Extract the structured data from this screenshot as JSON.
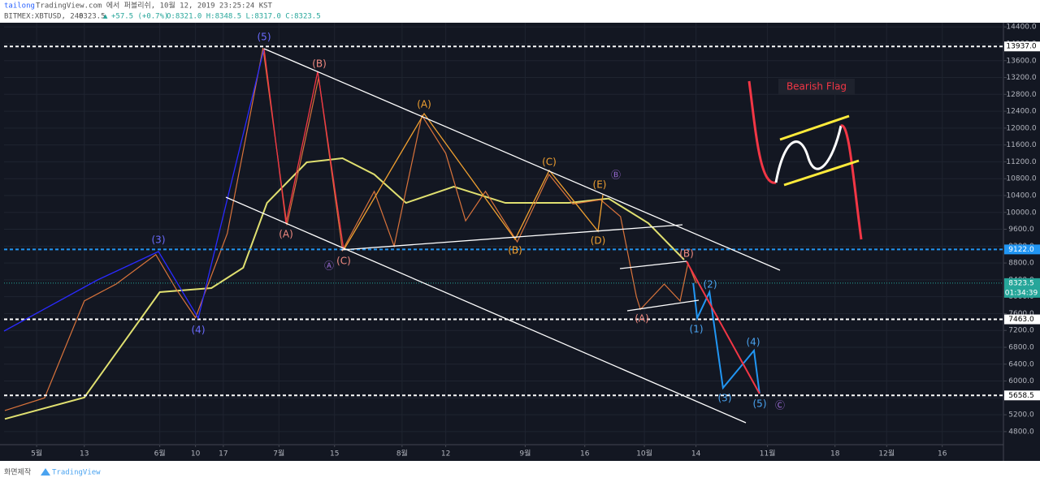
{
  "chart_data": {
    "type": "line",
    "author": "tailong",
    "title": "TradingView.com 에서 퍼블리쉬, 10월 12, 2019 23:25:24 KST",
    "symbol": "BITMEX:XBTUSD, 240",
    "last": 8323.5,
    "change": "+57.5 (+0.7%)",
    "ohlc": "O:8321.0 H:8348.5 L:8317.0 C:8323.5",
    "footer": "화면제작",
    "brand": "TradingView",
    "xlim": [
      -8.2,
      243.4
    ],
    "xticks": [
      {
        "value": 0,
        "label": "5월"
      },
      {
        "value": 12,
        "label": "13"
      },
      {
        "value": 31,
        "label": "6월"
      },
      {
        "value": 40,
        "label": "10"
      },
      {
        "value": 47,
        "label": "17"
      },
      {
        "value": 61,
        "label": "7월"
      },
      {
        "value": 75,
        "label": "15"
      },
      {
        "value": 92,
        "label": "8월"
      },
      {
        "value": 103,
        "label": "12"
      },
      {
        "value": 123,
        "label": "9월"
      },
      {
        "value": 138,
        "label": "16"
      },
      {
        "value": 153,
        "label": "10월"
      },
      {
        "value": 166,
        "label": "14"
      },
      {
        "value": 184,
        "label": "11월"
      },
      {
        "value": 201,
        "label": "18"
      },
      {
        "value": 214,
        "label": "12월"
      },
      {
        "value": 228,
        "label": "16"
      }
    ],
    "ylim": [
      4490,
      14500
    ],
    "yticks": [
      {
        "value": 4800,
        "label": "4800.0"
      },
      {
        "value": 5200,
        "label": "5200.0"
      },
      {
        "value": 5600,
        "label": "5600.0"
      },
      {
        "value": 6000,
        "label": "6000.0"
      },
      {
        "value": 6400,
        "label": "6400.0"
      },
      {
        "value": 6800,
        "label": "6800.0"
      },
      {
        "value": 7200,
        "label": "7200.0"
      },
      {
        "value": 7600,
        "label": "7600.0"
      },
      {
        "value": 8000,
        "label": "8000.0"
      },
      {
        "value": 8400,
        "label": "8400.0"
      },
      {
        "value": 8800,
        "label": "8800.0"
      },
      {
        "value": 9200,
        "label": "9200.0"
      },
      {
        "value": 9600,
        "label": "9600.0"
      },
      {
        "value": 10000,
        "label": "10000.0"
      },
      {
        "value": 10400,
        "label": "10400.0"
      },
      {
        "value": 10800,
        "label": "10800.0"
      },
      {
        "value": 11200,
        "label": "11200.0"
      },
      {
        "value": 11600,
        "label": "11600.0"
      },
      {
        "value": 12000,
        "label": "12000.0"
      },
      {
        "value": 12400,
        "label": "12400.0"
      },
      {
        "value": 12800,
        "label": "12800.0"
      },
      {
        "value": 13200,
        "label": "13200.0"
      },
      {
        "value": 13600,
        "label": "13600.0"
      },
      {
        "value": 14000,
        "label": "14000.0"
      },
      {
        "value": 14400,
        "label": "14400.0"
      }
    ],
    "grid": true,
    "series": [
      {
        "color": "#e0e070",
        "x": [
          -8,
          12,
          31,
          44,
          52,
          58,
          68,
          77,
          85,
          93,
          105,
          118,
          134,
          144,
          154,
          163
        ],
        "values": [
          5100,
          5610,
          8109,
          8205,
          8686,
          10226,
          11189,
          11285,
          10900,
          10226,
          10611,
          10226,
          10226,
          10330,
          9745,
          8879
        ]
      },
      {
        "color": "#d9733b",
        "x": [
          -8,
          2,
          12,
          20,
          30,
          35,
          40,
          48,
          57,
          63,
          71,
          77,
          85,
          90,
          97,
          103,
          108,
          113,
          121,
          129,
          135,
          142,
          147,
          151,
          152,
          158,
          162,
          164,
          166
        ],
        "values": [
          5300,
          5600,
          7900,
          8300,
          9000,
          8200,
          7500,
          9500,
          13900,
          9700,
          13200,
          9100,
          10500,
          9200,
          12300,
          11400,
          9800,
          10500,
          9300,
          10900,
          10200,
          10300,
          9900,
          8000,
          7700,
          8300,
          7900,
          8800,
          8323.5
        ]
      },
      {
        "color": "#2196f3",
        "x": [
          165.3,
          166.3,
          169.4,
          172.8,
          180.6,
          182
        ],
        "values": [
          8323.5,
          7493,
          8109,
          5838,
          6723,
          5703
        ]
      },
      {
        "color": "#f23645",
        "x": [
          163.6,
          182
        ],
        "values": [
          8840,
          5700
        ]
      }
    ],
    "levels": [
      {
        "value": 13937,
        "label": "13937.0",
        "color": "#ffffff"
      },
      {
        "value": 9122,
        "label": "9122.0",
        "color": "#2196f3"
      },
      {
        "value": 7463,
        "label": "7463.0",
        "color": "#ffffff"
      },
      {
        "value": 5658.5,
        "label": "5658.5",
        "color": "#ffffff"
      }
    ],
    "price_label": {
      "value": 8323.5,
      "label": "8323.5",
      "color": "#26a69a"
    },
    "countdown": "01:34:39",
    "annotations": [
      {
        "text": "(5)",
        "color": "#6b6bff"
      },
      {
        "text": "(B)",
        "color": "#f08a80"
      },
      {
        "text": "(A)",
        "color": "#f0a030"
      },
      {
        "text": "(C)",
        "color": "#f0a030"
      },
      {
        "text": "(E)",
        "color": "#f0a030"
      },
      {
        "text": "Ⓑ",
        "color": "#9b6bd6"
      },
      {
        "text": "(3)",
        "color": "#6b6bff"
      },
      {
        "text": "(4)",
        "color": "#6b6bff"
      },
      {
        "text": "(A)",
        "color": "#f08a80"
      },
      {
        "text": "(C)",
        "color": "#f08a80"
      },
      {
        "text": "Ⓐ",
        "color": "#9b6bd6"
      },
      {
        "text": "(B)",
        "color": "#f0a030"
      },
      {
        "text": "(D)",
        "color": "#f0a030"
      },
      {
        "text": "(B)",
        "color": "#f08a80"
      },
      {
        "text": "(A)",
        "color": "#f08a80"
      },
      {
        "text": "(1)",
        "color": "#4aa3f0"
      },
      {
        "text": "(2)",
        "color": "#4aa3f0"
      },
      {
        "text": "(3)",
        "color": "#4aa3f0"
      },
      {
        "text": "(4)",
        "color": "#4aa3f0"
      },
      {
        "text": "(5)",
        "color": "#4aa3f0"
      },
      {
        "text": "Ⓒ",
        "color": "#9b6bd6"
      },
      {
        "text": "Bearish Flag",
        "color": "#f23645"
      }
    ]
  }
}
